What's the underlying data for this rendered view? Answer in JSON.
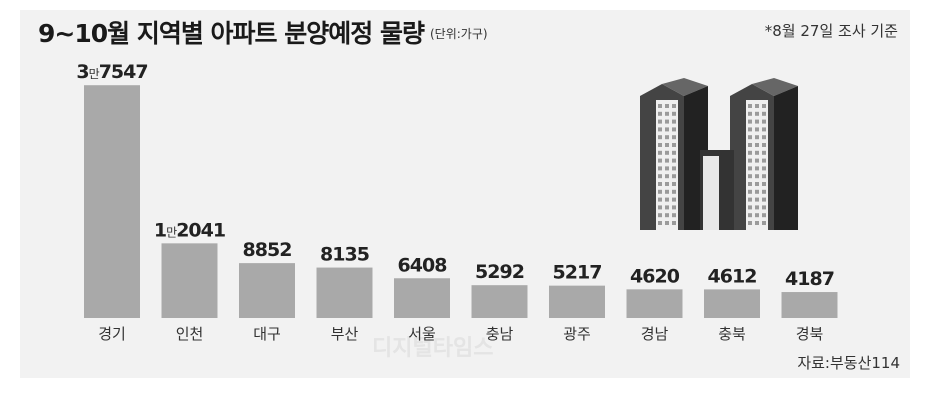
{
  "header": {
    "title": "9~10월 지역별 아파트 분양예정 물량",
    "unit": "(단위:가구)",
    "note": "*8월 27일 조사 기준"
  },
  "footer": {
    "source": "자료:부동산114",
    "watermark": "디지털타임스"
  },
  "illustration": {
    "icon": "apartment-buildings-icon"
  },
  "chart_data": {
    "type": "bar",
    "title": "9~10월 지역별 아파트 분양예정 물량",
    "unit": "가구",
    "categories": [
      "경기",
      "인천",
      "대구",
      "부산",
      "서울",
      "충남",
      "광주",
      "경남",
      "충북",
      "경북"
    ],
    "values": [
      37547,
      12041,
      8852,
      8135,
      6408,
      5292,
      5217,
      4620,
      4612,
      4187
    ],
    "value_labels": [
      {
        "big": "3",
        "small": "만",
        "rest": "7547"
      },
      {
        "big": "1",
        "small": "만",
        "rest": "2041"
      },
      {
        "big": "8852",
        "small": "",
        "rest": ""
      },
      {
        "big": "8135",
        "small": "",
        "rest": ""
      },
      {
        "big": "6408",
        "small": "",
        "rest": ""
      },
      {
        "big": "5292",
        "small": "",
        "rest": ""
      },
      {
        "big": "5217",
        "small": "",
        "rest": ""
      },
      {
        "big": "4620",
        "small": "",
        "rest": ""
      },
      {
        "big": "4612",
        "small": "",
        "rest": ""
      },
      {
        "big": "4187",
        "small": "",
        "rest": ""
      }
    ],
    "ylim": [
      0,
      40000
    ],
    "colors": {
      "bar": "#a9a9a9",
      "background": "#f2f2f2"
    },
    "grid": false,
    "legend": "none"
  }
}
